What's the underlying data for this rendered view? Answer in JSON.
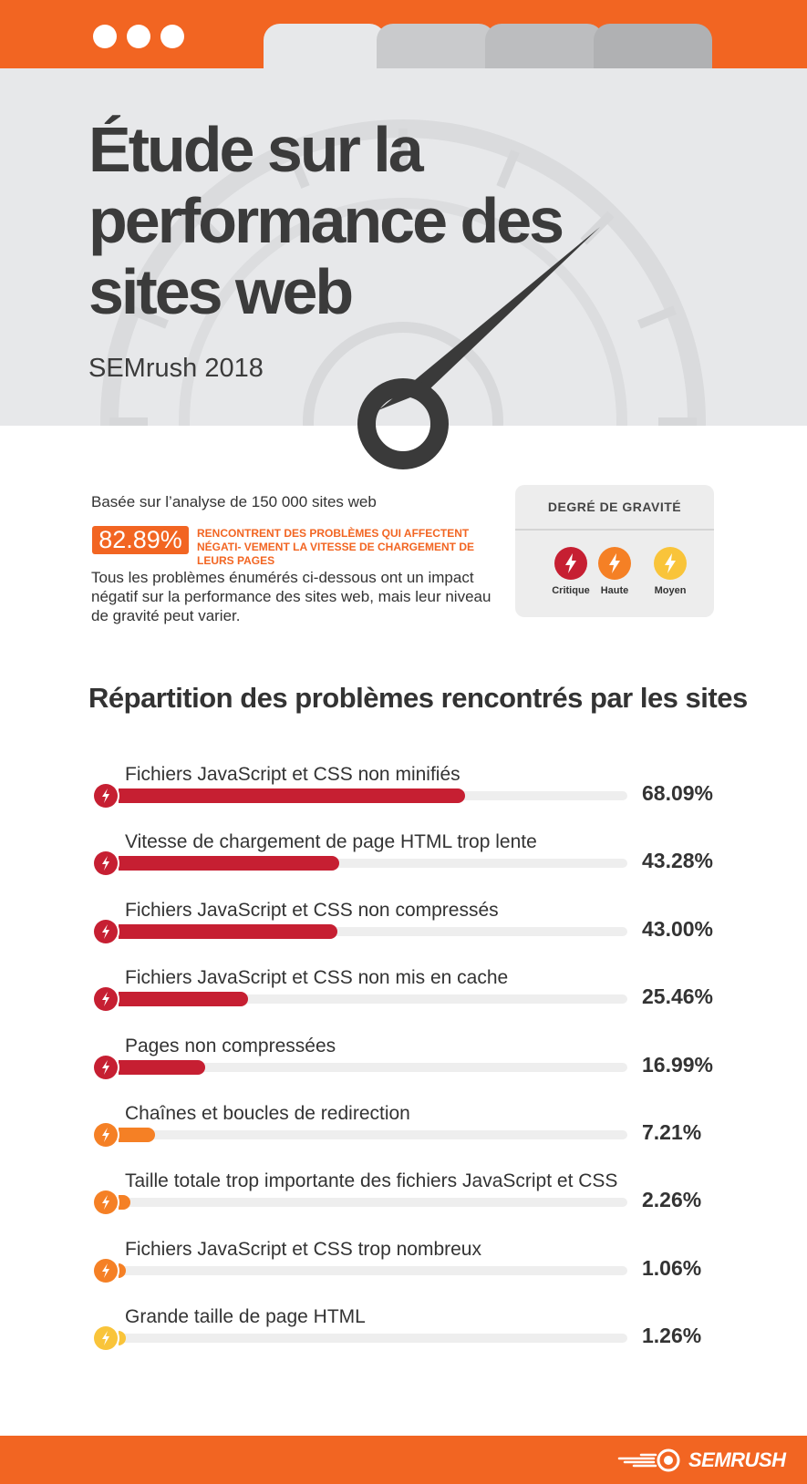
{
  "colors": {
    "brand": "#f26522",
    "critique": "#c61f32",
    "haute": "#f58025",
    "moyen": "#f9c43a"
  },
  "header": {
    "title": "Étude sur la performance des sites web",
    "subtitle": "SEMrush 2018"
  },
  "intro": {
    "basis": "Basée sur l’analyse de 150 000 sites web",
    "stat_value": "82.89%",
    "stat_text": "RENCONTRENT DES PROBLÈMES QUI AFFECTENT NÉGATI- VEMENT LA VITESSE DE CHARGEMENT DE LEURS PAGES",
    "description": "Tous les problèmes énumérés ci-dessous ont un impact négatif sur la performance des sites web, mais leur niveau de gravité peut varier."
  },
  "legend": {
    "title": "DEGRÉ DE GRAVITÉ",
    "items": [
      {
        "label": "Critique",
        "icon": "lightning-icon",
        "color": "#c61f32"
      },
      {
        "label": "Haute",
        "icon": "lightning-icon",
        "color": "#f58025"
      },
      {
        "label": "Moyen",
        "icon": "lightning-icon",
        "color": "#f9c43a"
      }
    ]
  },
  "chart_data": {
    "type": "bar",
    "title": "Répartition des problèmes rencontrés par les sites",
    "orientation": "horizontal",
    "xlim": [
      0,
      100
    ],
    "categories": [
      "Fichiers JavaScript et CSS non minifiés",
      "Vitesse de chargement de page HTML trop lente",
      "Fichiers JavaScript et CSS non compressés",
      "Fichiers JavaScript et CSS non mis en cache",
      "Pages non compressées",
      "Chaînes et boucles de redirection",
      "Taille totale trop importante des fichiers JavaScript et CSS",
      "Fichiers JavaScript et CSS trop nombreux",
      "Grande taille de page HTML"
    ],
    "values": [
      68.09,
      43.28,
      43.0,
      25.46,
      16.99,
      7.21,
      2.26,
      1.06,
      1.26
    ],
    "value_labels": [
      "68.09%",
      "43.28%",
      "43.00%",
      "25.46%",
      "16.99%",
      "7.21%",
      "2.26%",
      "1.06%",
      "1.26%"
    ],
    "severity": [
      "Critique",
      "Critique",
      "Critique",
      "Critique",
      "Critique",
      "Haute",
      "Haute",
      "Haute",
      "Moyen"
    ]
  },
  "footer": {
    "logo": "SEMRUSH"
  }
}
